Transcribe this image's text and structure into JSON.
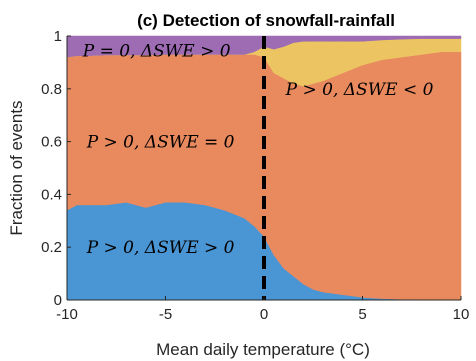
{
  "chart_data": {
    "type": "area",
    "title": "(c) Detection of snowfall-rainfall",
    "xlabel": "Mean daily temperature (°C)",
    "ylabel": "Fraction of events",
    "xlim": [
      -10,
      10
    ],
    "ylim": [
      0,
      1
    ],
    "xticks": [
      -10,
      -5,
      0,
      5,
      10
    ],
    "yticks": [
      0,
      0.2,
      0.4,
      0.6,
      0.8,
      1
    ],
    "xtick_labels": [
      "-10",
      "-5",
      "0",
      "5",
      "10"
    ],
    "ytick_labels": [
      "0",
      "0.2",
      "0.4",
      "0.6",
      "0.8",
      "1"
    ],
    "stacked": true,
    "grid": false,
    "x": [
      -10,
      -9.5,
      -9,
      -8,
      -7,
      -6.5,
      -6,
      -5,
      -4,
      -3,
      -2,
      -1,
      -0.5,
      0,
      0.5,
      1,
      1.5,
      2,
      2.5,
      3,
      4,
      5,
      6,
      7,
      8,
      9,
      10
    ],
    "series": [
      {
        "name": "P > 0, ΔSWE > 0",
        "color": "#4a95d4",
        "values": [
          0.34,
          0.36,
          0.36,
          0.36,
          0.37,
          0.36,
          0.35,
          0.37,
          0.37,
          0.36,
          0.34,
          0.31,
          0.28,
          0.24,
          0.17,
          0.12,
          0.09,
          0.06,
          0.04,
          0.03,
          0.02,
          0.01,
          0.005,
          0.003,
          0.002,
          0.001,
          0.0
        ]
      },
      {
        "name": "P > 0, ΔSWE = 0",
        "color": "#e8895e",
        "values": [
          0.58,
          0.565,
          0.565,
          0.568,
          0.558,
          0.568,
          0.578,
          0.56,
          0.56,
          0.57,
          0.59,
          0.62,
          0.65,
          0.68,
          0.69,
          0.72,
          0.73,
          0.75,
          0.78,
          0.8,
          0.84,
          0.88,
          0.905,
          0.917,
          0.928,
          0.939,
          0.94
        ]
      },
      {
        "name": "P > 0, ΔSWE < 0",
        "color": "#ecc462",
        "values": [
          0.0,
          0.0,
          0.0,
          0.0,
          0.0,
          0.0,
          0.0,
          0.0,
          0.0,
          0.0,
          0.0,
          0.0,
          0.01,
          0.04,
          0.09,
          0.12,
          0.155,
          0.17,
          0.16,
          0.15,
          0.12,
          0.09,
          0.075,
          0.068,
          0.06,
          0.05,
          0.05
        ]
      },
      {
        "name": "P = 0, ΔSWE > 0",
        "color": "#9d6cb3",
        "values": [
          0.08,
          0.075,
          0.075,
          0.072,
          0.072,
          0.072,
          0.072,
          0.07,
          0.07,
          0.07,
          0.07,
          0.07,
          0.06,
          0.04,
          0.05,
          0.04,
          0.025,
          0.02,
          0.02,
          0.02,
          0.02,
          0.02,
          0.015,
          0.012,
          0.01,
          0.01,
          0.01
        ]
      }
    ],
    "annotations": [
      {
        "text": "P = 0, ΔSWE > 0",
        "x": -9.2,
        "y": 0.945
      },
      {
        "text": "P > 0, ΔSWE < 0",
        "x": 1.1,
        "y": 0.8
      },
      {
        "text": "P > 0, ΔSWE = 0",
        "x": -9.0,
        "y": 0.6
      },
      {
        "text": "P > 0, ΔSWE > 0",
        "x": -9.0,
        "y": 0.2
      }
    ],
    "threshold_line": {
      "x": 0,
      "style": "dashed",
      "color": "#000000"
    }
  }
}
